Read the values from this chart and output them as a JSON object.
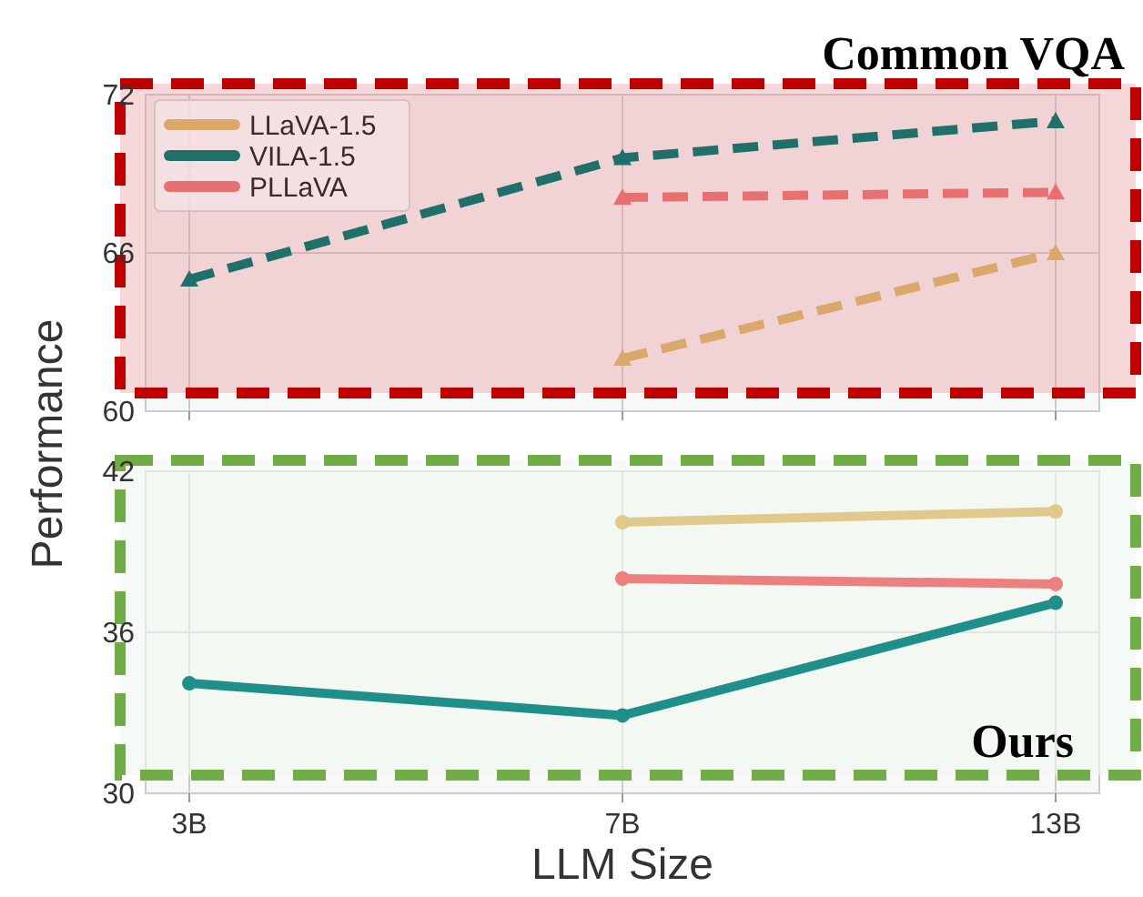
{
  "chart_data": [
    {
      "type": "line",
      "title": "Common VQA",
      "categories": [
        "3B",
        "7B",
        "13B"
      ],
      "series": [
        {
          "name": "LLaVA-1.5",
          "color": "#d9a86a",
          "x": [
            "7B",
            "13B"
          ],
          "values": [
            62.0,
            66.0
          ]
        },
        {
          "name": "VILA-1.5",
          "color": "#1f6f6a",
          "values": [
            65.0,
            69.6,
            71.0
          ]
        },
        {
          "name": "PLLaVA",
          "color": "#e87070",
          "x": [
            "7B",
            "13B"
          ],
          "values": [
            68.1,
            68.3
          ]
        }
      ],
      "ylim": [
        60,
        72
      ],
      "yticks": [
        60,
        66,
        72
      ],
      "grid": true,
      "legend": "top left",
      "marker": "triangle",
      "line_style": "dashed",
      "tick_labels": "y"
    },
    {
      "type": "line",
      "title": "Ours",
      "xlabel": "LLM Size",
      "ylabel": "Performance",
      "categories": [
        "3B",
        "7B",
        "13B"
      ],
      "series": [
        {
          "color": "#e0c98a",
          "x": [
            "7B",
            "13B"
          ],
          "values": [
            40.1,
            40.5
          ]
        },
        {
          "color": "#1f8f8a",
          "values": [
            34.1,
            32.9,
            37.1
          ]
        },
        {
          "color": "#ec8080",
          "x": [
            "7B",
            "13B"
          ],
          "values": [
            38.0,
            37.8
          ]
        }
      ],
      "ylim": [
        30,
        42
      ],
      "yticks": [
        30,
        36,
        42
      ],
      "grid": true,
      "marker": "circle",
      "line_style": "solid"
    }
  ]
}
